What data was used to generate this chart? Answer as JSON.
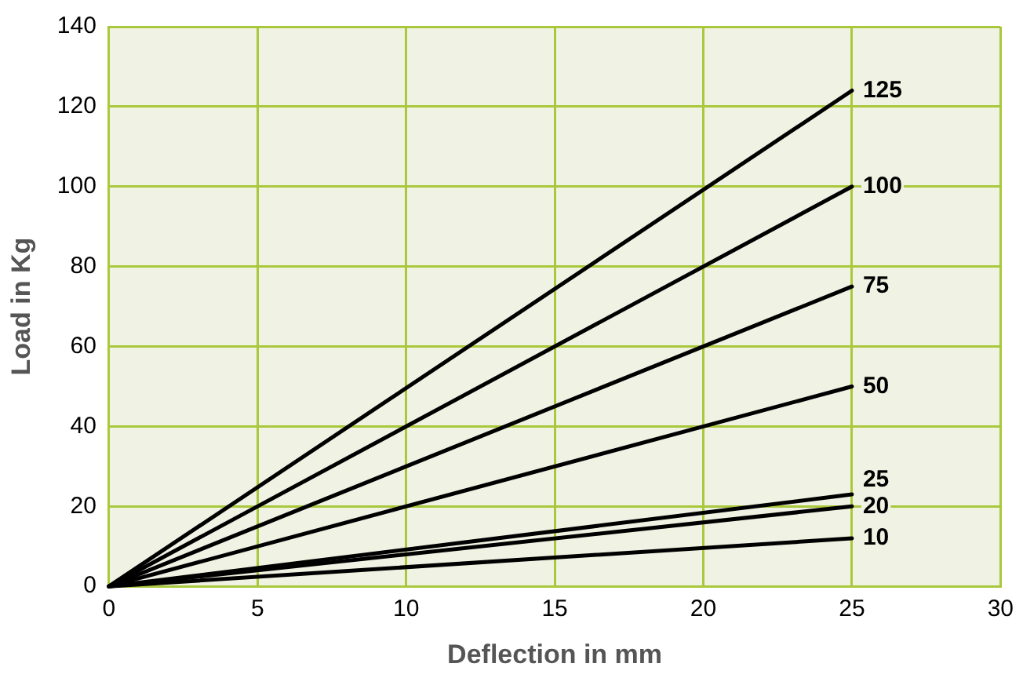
{
  "chart_data": {
    "type": "line",
    "xlabel": "Deflection in mm",
    "ylabel": "Load in Kg",
    "xlim": [
      0,
      30
    ],
    "xticks": [
      0,
      5,
      10,
      15,
      20,
      25,
      30
    ],
    "ylim": [
      0,
      140
    ],
    "yticks": [
      0,
      20,
      40,
      60,
      80,
      100,
      120,
      140
    ],
    "grid": true,
    "legend": false,
    "marker": "none",
    "line_style": "solid",
    "x": [
      0,
      25
    ],
    "series": [
      {
        "name": "125",
        "color": "#000000",
        "values": [
          0,
          124
        ]
      },
      {
        "name": "100",
        "color": "#000000",
        "values": [
          0,
          100
        ]
      },
      {
        "name": "75",
        "color": "#000000",
        "values": [
          0,
          75
        ]
      },
      {
        "name": "50",
        "color": "#000000",
        "values": [
          0,
          50
        ]
      },
      {
        "name": "25",
        "color": "#000000",
        "values": [
          0,
          23
        ]
      },
      {
        "name": "20",
        "color": "#000000",
        "values": [
          0,
          20
        ]
      },
      {
        "name": "10",
        "color": "#000000",
        "values": [
          0,
          12
        ]
      }
    ]
  }
}
